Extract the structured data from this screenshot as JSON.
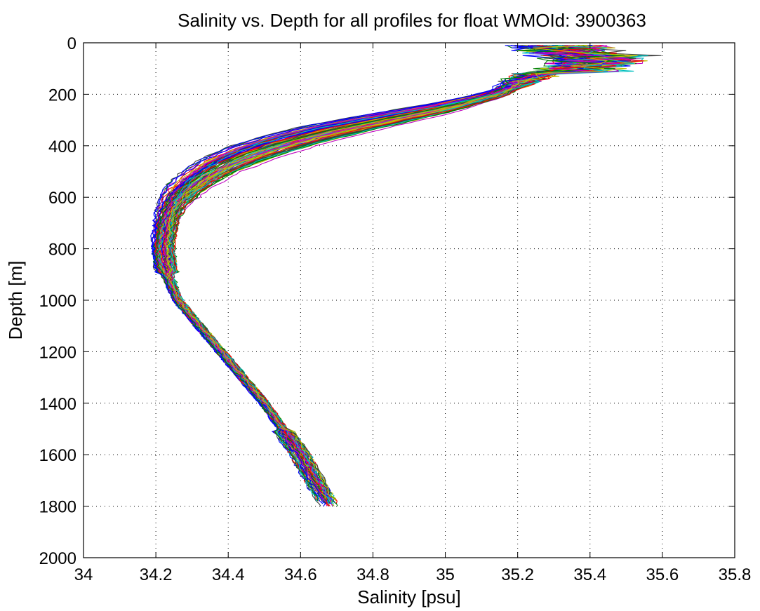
{
  "chart_data": {
    "type": "line",
    "title": "Salinity vs. Depth for all profiles for float WMOId: 3900363",
    "xlabel": "Salinity [psu]",
    "ylabel": "Depth [m]",
    "xlim": [
      34,
      35.8
    ],
    "ylim": [
      0,
      2000
    ],
    "y_reversed": true,
    "grid": true,
    "legend": "none",
    "x_ticks": [
      "34",
      "34.2",
      "34.4",
      "34.6",
      "34.8",
      "35",
      "35.2",
      "35.4",
      "35.6",
      "35.8"
    ],
    "y_ticks": [
      "0",
      "200",
      "400",
      "600",
      "800",
      "1000",
      "1200",
      "1400",
      "1600",
      "1800",
      "2000"
    ],
    "profile_count": 90,
    "series_colors": [
      "#0000ff",
      "#008000",
      "#ff0000",
      "#00bfbf",
      "#bf00bf",
      "#bfbf00",
      "#404040"
    ],
    "mean_profile": {
      "depth": [
        10,
        50,
        80,
        120,
        160,
        200,
        250,
        300,
        350,
        400,
        450,
        500,
        550,
        600,
        650,
        700,
        800,
        900,
        1000,
        1100,
        1200,
        1300,
        1400,
        1500,
        1600,
        1700,
        1750,
        1800
      ],
      "salinity": [
        35.32,
        35.35,
        35.34,
        35.26,
        35.2,
        35.14,
        35.0,
        34.82,
        34.65,
        34.52,
        34.42,
        34.35,
        34.3,
        34.26,
        34.24,
        34.23,
        34.22,
        34.23,
        34.26,
        34.32,
        34.38,
        34.44,
        34.5,
        34.55,
        34.6,
        34.64,
        34.66,
        34.68
      ]
    }
  }
}
